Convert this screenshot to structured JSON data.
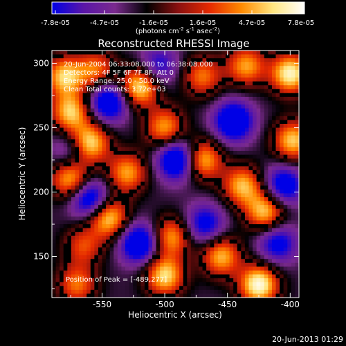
{
  "chart_data": {
    "type": "heatmap",
    "title": "Reconstructed RHESSI Image",
    "xlabel": "Heliocentric X (arcsec)",
    "ylabel": "Heliocentric Y (arcsec)",
    "xlim": [
      -590,
      -393
    ],
    "ylim": [
      118,
      310
    ],
    "x_ticks": [
      -550,
      -500,
      -450,
      -400
    ],
    "y_ticks": [
      150,
      200,
      250,
      300
    ],
    "colorbar": {
      "range": [
        -7.8e-05,
        7.8e-05
      ],
      "tick_labels": [
        "-7.8e-05",
        "-4.7e-05",
        "-1.6e-05",
        "1.6e-05",
        "4.7e-05",
        "7.8e-05"
      ],
      "unit_label": "(photons cm",
      "unit_exp1": "-2",
      "unit_mid": " s",
      "unit_exp2": "-1",
      "unit_tail": " asec",
      "unit_exp3": "-2",
      "unit_close": ")",
      "stops": [
        "#0000e6",
        "#5a16a8",
        "#7a2a8e",
        "#000000",
        "#8a1010",
        "#e62a00",
        "#ff8a00",
        "#ffe680",
        "#ffffff"
      ]
    },
    "annotations": [
      "20-Jun-2004 06:33:08.000 to 06:38:08.000",
      "Detectors: 4F 5F 6F 7F 8F, Att 0",
      "Energy Range: 25.0 - 50.0 keV",
      "Clean    Total counts: 3.72e+03"
    ],
    "peak_label": "Position of Peak = [-489,277]",
    "peak": [
      -489,
      277
    ],
    "sources": [
      {
        "x": -580,
        "y": 290,
        "v": 0.8
      },
      {
        "x": -555,
        "y": 295,
        "v": 0.6
      },
      {
        "x": -520,
        "y": 282,
        "v": 0.9
      },
      {
        "x": -470,
        "y": 290,
        "v": 0.6
      },
      {
        "x": -435,
        "y": 298,
        "v": 0.7
      },
      {
        "x": -400,
        "y": 292,
        "v": 0.95
      },
      {
        "x": -575,
        "y": 262,
        "v": 0.8
      },
      {
        "x": -560,
        "y": 238,
        "v": 0.9
      },
      {
        "x": -500,
        "y": 250,
        "v": 0.7
      },
      {
        "x": -470,
        "y": 225,
        "v": 0.8
      },
      {
        "x": -398,
        "y": 240,
        "v": 0.8
      },
      {
        "x": -575,
        "y": 210,
        "v": 0.8
      },
      {
        "x": -530,
        "y": 215,
        "v": 0.7
      },
      {
        "x": -438,
        "y": 205,
        "v": 0.75
      },
      {
        "x": -545,
        "y": 180,
        "v": 0.85
      },
      {
        "x": -420,
        "y": 185,
        "v": 0.8
      },
      {
        "x": -565,
        "y": 158,
        "v": 0.5
      },
      {
        "x": -495,
        "y": 165,
        "v": 0.7
      },
      {
        "x": -455,
        "y": 150,
        "v": 0.75
      },
      {
        "x": -500,
        "y": 135,
        "v": 0.85
      },
      {
        "x": -425,
        "y": 128,
        "v": 1.0
      },
      {
        "x": -570,
        "y": 128,
        "v": 0.6
      },
      {
        "x": -545,
        "y": 270,
        "v": -0.8
      },
      {
        "x": -490,
        "y": 225,
        "v": -0.9
      },
      {
        "x": -560,
        "y": 195,
        "v": -0.8
      },
      {
        "x": -445,
        "y": 255,
        "v": -0.85
      },
      {
        "x": -405,
        "y": 205,
        "v": -0.7
      },
      {
        "x": -520,
        "y": 160,
        "v": -0.85
      },
      {
        "x": -468,
        "y": 175,
        "v": -0.6
      },
      {
        "x": -410,
        "y": 160,
        "v": -0.6
      },
      {
        "x": -575,
        "y": 232,
        "v": -0.4
      },
      {
        "x": -505,
        "y": 298,
        "v": -0.5
      }
    ]
  },
  "footer": {
    "timestamp": "20-Jun-2013 01:29"
  }
}
